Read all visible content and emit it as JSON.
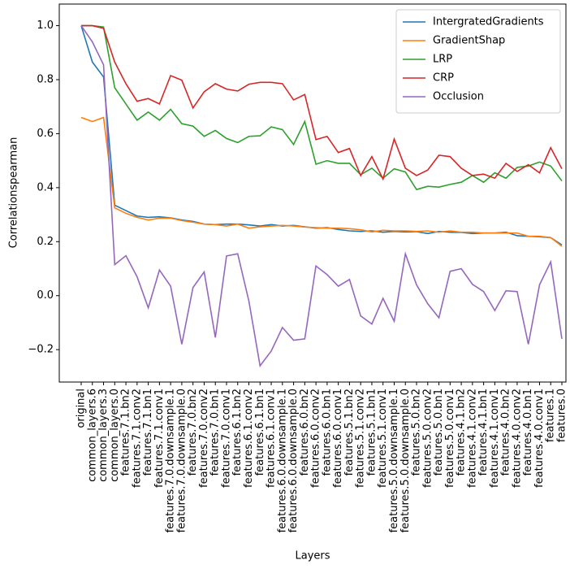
{
  "chart_data": {
    "type": "line",
    "xlabel": "Layers",
    "ylabel": "Correlationspearman",
    "categories": [
      "original",
      "common_layers.6",
      "common_layers.3",
      "common_layers.0",
      "features.7.1.bn2",
      "features.7.1.conv2",
      "features.7.1.bn1",
      "features.7.1.conv1",
      "features.7.0.downsample.1",
      "features.7.0.downsample.0",
      "features.7.0.bn2",
      "features.7.0.conv2",
      "features.7.0.bn1",
      "features.7.0.conv1",
      "features.6.1.bn2",
      "features.6.1.conv2",
      "features.6.1.bn1",
      "features.6.1.conv1",
      "features.6.0.downsample.1",
      "features.6.0.downsample.0",
      "features.6.0.bn2",
      "features.6.0.conv2",
      "features.6.0.bn1",
      "features.6.0.conv1",
      "features.5.1.bn2",
      "features.5.1.conv2",
      "features.5.1.bn1",
      "features.5.1.conv1",
      "features.5.0.downsample.1",
      "features.5.0.downsample.0",
      "features.5.0.bn2",
      "features.5.0.conv2",
      "features.5.0.bn1",
      "features.5.0.conv1",
      "features.4.1.bn2",
      "features.4.1.conv2",
      "features.4.1.bn1",
      "features.4.1.conv1",
      "features.4.0.bn2",
      "features.4.0.conv2",
      "features.4.0.bn1",
      "features.4.0.conv1",
      "features.1",
      "features.0"
    ],
    "series": [
      {
        "name": "IntergratedGradients",
        "color": "#1f77b4",
        "values": [
          1.0,
          0.865,
          0.81,
          0.335,
          0.315,
          0.295,
          0.29,
          0.292,
          0.288,
          0.28,
          0.275,
          0.265,
          0.263,
          0.265,
          0.265,
          0.262,
          0.258,
          0.263,
          0.258,
          0.26,
          0.255,
          0.25,
          0.252,
          0.245,
          0.24,
          0.238,
          0.24,
          0.235,
          0.238,
          0.236,
          0.237,
          0.23,
          0.238,
          0.235,
          0.234,
          0.23,
          0.232,
          0.232,
          0.235,
          0.222,
          0.22,
          0.218,
          0.215,
          0.188
        ]
      },
      {
        "name": "GradientShap",
        "color": "#ff7f0e",
        "values": [
          0.66,
          0.645,
          0.66,
          0.325,
          0.305,
          0.29,
          0.28,
          0.287,
          0.287,
          0.278,
          0.272,
          0.265,
          0.263,
          0.258,
          0.265,
          0.25,
          0.255,
          0.258,
          0.26,
          0.258,
          0.254,
          0.252,
          0.25,
          0.25,
          0.248,
          0.244,
          0.236,
          0.242,
          0.24,
          0.24,
          0.238,
          0.24,
          0.235,
          0.24,
          0.235,
          0.235,
          0.232,
          0.232,
          0.232,
          0.232,
          0.22,
          0.22,
          0.215,
          0.183
        ]
      },
      {
        "name": "LRP",
        "color": "#2ca02c",
        "values": [
          1.0,
          1.0,
          0.995,
          0.77,
          0.71,
          0.65,
          0.68,
          0.65,
          0.69,
          0.637,
          0.628,
          0.59,
          0.612,
          0.582,
          0.567,
          0.59,
          0.592,
          0.625,
          0.615,
          0.56,
          0.645,
          0.487,
          0.5,
          0.49,
          0.49,
          0.448,
          0.472,
          0.435,
          0.47,
          0.458,
          0.393,
          0.405,
          0.402,
          0.412,
          0.42,
          0.445,
          0.42,
          0.455,
          0.435,
          0.475,
          0.48,
          0.495,
          0.48,
          0.425
        ]
      },
      {
        "name": "CRP",
        "color": "#d62728",
        "values": [
          1.0,
          1.0,
          0.99,
          0.865,
          0.785,
          0.72,
          0.73,
          0.71,
          0.815,
          0.798,
          0.695,
          0.755,
          0.785,
          0.765,
          0.758,
          0.783,
          0.79,
          0.79,
          0.785,
          0.725,
          0.745,
          0.578,
          0.59,
          0.53,
          0.545,
          0.445,
          0.515,
          0.432,
          0.58,
          0.472,
          0.445,
          0.465,
          0.52,
          0.515,
          0.472,
          0.445,
          0.45,
          0.435,
          0.49,
          0.46,
          0.485,
          0.455,
          0.548,
          0.47
        ]
      },
      {
        "name": "Occlusion",
        "color": "#9467bd",
        "values": [
          1.0,
          0.94,
          0.855,
          0.115,
          0.148,
          0.07,
          -0.045,
          0.095,
          0.035,
          -0.18,
          0.03,
          0.088,
          -0.155,
          0.147,
          0.155,
          -0.02,
          -0.26,
          -0.205,
          -0.118,
          -0.165,
          -0.16,
          0.11,
          0.078,
          0.035,
          0.06,
          -0.075,
          -0.105,
          -0.01,
          -0.095,
          0.155,
          0.04,
          -0.03,
          -0.082,
          0.09,
          0.1,
          0.042,
          0.015,
          -0.055,
          0.018,
          0.015,
          -0.18,
          0.04,
          0.125,
          -0.16
        ]
      }
    ],
    "ylim": [
      -0.32,
      1.08
    ],
    "yticks": [
      {
        "value": -0.2,
        "label": "−0.2"
      },
      {
        "value": 0,
        "label": "0.0"
      },
      {
        "value": 0.2,
        "label": "0.2"
      },
      {
        "value": 0.4,
        "label": "0.4"
      },
      {
        "value": 0.6,
        "label": "0.6"
      },
      {
        "value": 0.8,
        "label": "0.8"
      },
      {
        "value": 1.0,
        "label": "1.0"
      }
    ],
    "legend": "upper right"
  }
}
